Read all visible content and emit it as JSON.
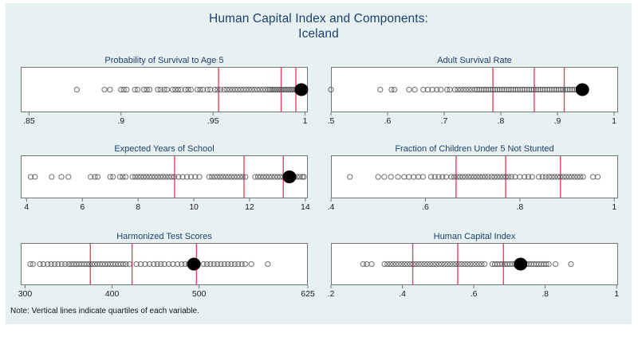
{
  "title": {
    "line1": "Human Capital Index and Components:",
    "line2": "Iceland"
  },
  "note": "Note: Vertical lines indicate quartiles of each variable.",
  "colors": {
    "canvas_bg": "#e7f1f2",
    "title_navy": "#1e3f6e",
    "quartile_line": "#ed3e68",
    "marker_outline": "#4a4a4a",
    "highlight_dot": "#000000",
    "plot_border": "#737373",
    "tick_text": "#1a1a1a",
    "plot_bg": "#ffffff"
  },
  "chart_data": [
    {
      "type": "scatter",
      "title": "Probability of Survival to Age 5",
      "xlabel": "",
      "xlim": [
        0.8455,
        1.0015
      ],
      "tick_values": [
        0.85,
        0.9,
        0.95,
        1
      ],
      "tick_labels": [
        ".85",
        ".9",
        ".95",
        "1"
      ],
      "quartiles": [
        0.953,
        0.987,
        0.995
      ],
      "highlight_country": "Iceland",
      "highlight": 0.998,
      "points": [
        0.876,
        0.891,
        0.894,
        0.9,
        0.9015,
        0.903,
        0.9075,
        0.909,
        0.9125,
        0.914,
        0.9155,
        0.92,
        0.9215,
        0.9235,
        0.925,
        0.928,
        0.9295,
        0.931,
        0.9325,
        0.935,
        0.9365,
        0.938,
        0.9415,
        0.943,
        0.9445,
        0.947,
        0.9485,
        0.951,
        0.9525,
        0.954,
        0.956,
        0.9575,
        0.959,
        0.9605,
        0.962,
        0.9635,
        0.965,
        0.9665,
        0.968,
        0.9695,
        0.971,
        0.9725,
        0.974,
        0.9755,
        0.977,
        0.9785,
        0.98,
        0.981,
        0.982,
        0.983,
        0.984,
        0.985,
        0.986,
        0.987,
        0.988,
        0.989,
        0.99,
        0.991,
        0.992,
        0.993,
        0.994,
        0.995,
        0.996,
        0.997,
        0.998,
        0.999,
        1.0
      ]
    },
    {
      "type": "scatter",
      "title": "Adult Survival Rate",
      "xlabel": "",
      "xlim": [
        0.5,
        1.007
      ],
      "tick_values": [
        0.5,
        0.6,
        0.7,
        0.8,
        0.9,
        1
      ],
      "tick_labels": [
        ".5",
        ".6",
        ".7",
        ".8",
        ".9",
        "1"
      ],
      "quartiles": [
        0.786,
        0.859,
        0.912
      ],
      "highlight_country": "Iceland",
      "highlight": 0.944,
      "points": [
        0.5,
        0.587,
        0.607,
        0.612,
        0.638,
        0.648,
        0.663,
        0.671,
        0.679,
        0.687,
        0.694,
        0.705,
        0.71,
        0.719,
        0.724,
        0.729,
        0.734,
        0.739,
        0.744,
        0.749,
        0.754,
        0.758,
        0.762,
        0.766,
        0.77,
        0.774,
        0.778,
        0.782,
        0.786,
        0.79,
        0.794,
        0.798,
        0.802,
        0.806,
        0.81,
        0.814,
        0.818,
        0.822,
        0.826,
        0.83,
        0.834,
        0.838,
        0.842,
        0.846,
        0.85,
        0.854,
        0.858,
        0.862,
        0.866,
        0.87,
        0.874,
        0.878,
        0.882,
        0.886,
        0.89,
        0.894,
        0.898,
        0.902,
        0.906,
        0.91,
        0.914,
        0.918,
        0.922,
        0.926,
        0.93,
        0.934,
        0.938,
        0.942,
        0.946,
        0.95
      ]
    },
    {
      "type": "scatter",
      "title": "Expected Years of School",
      "xlabel": "",
      "xlim": [
        3.79,
        14.09
      ],
      "tick_values": [
        4,
        6,
        8,
        10,
        12,
        14
      ],
      "tick_labels": [
        "4",
        "6",
        "8",
        "10",
        "12",
        "14"
      ],
      "quartiles": [
        9.31,
        11.8,
        13.21
      ],
      "highlight_country": "Iceland",
      "highlight": 13.43,
      "points": [
        4.15,
        4.3,
        4.9,
        5.25,
        5.5,
        6.3,
        6.45,
        6.55,
        7.0,
        7.1,
        7.35,
        7.45,
        7.55,
        7.8,
        7.9,
        8.0,
        8.1,
        8.2,
        8.3,
        8.4,
        8.5,
        8.6,
        8.7,
        8.8,
        8.9,
        9.0,
        9.1,
        9.2,
        9.3,
        9.45,
        9.6,
        9.75,
        9.9,
        10.05,
        10.2,
        10.55,
        10.65,
        10.75,
        10.85,
        10.95,
        11.05,
        11.15,
        11.25,
        11.35,
        11.45,
        11.55,
        11.65,
        11.75,
        11.85,
        12.2,
        12.3,
        12.4,
        12.5,
        12.6,
        12.7,
        12.8,
        12.9,
        13.0,
        13.1,
        13.2,
        13.3,
        13.4,
        13.5,
        13.6,
        13.7,
        13.8,
        13.9,
        13.95
      ]
    },
    {
      "type": "scatter",
      "title": "Fraction of Children Under 5 Not Stunted",
      "xlabel": "",
      "xlim": [
        0.4,
        1.008
      ],
      "tick_values": [
        0.4,
        0.6,
        0.8,
        1
      ],
      "tick_labels": [
        ".4",
        ".6",
        ".8",
        "1"
      ],
      "quartiles": [
        0.665,
        0.77,
        0.886
      ],
      "highlight_country": "Iceland",
      "highlight": null,
      "points": [
        0.44,
        0.5,
        0.513,
        0.527,
        0.542,
        0.555,
        0.565,
        0.575,
        0.585,
        0.595,
        0.612,
        0.62,
        0.628,
        0.636,
        0.644,
        0.655,
        0.661,
        0.667,
        0.673,
        0.679,
        0.685,
        0.691,
        0.697,
        0.703,
        0.709,
        0.715,
        0.721,
        0.727,
        0.733,
        0.74,
        0.746,
        0.752,
        0.758,
        0.764,
        0.77,
        0.776,
        0.782,
        0.79,
        0.8,
        0.81,
        0.818,
        0.826,
        0.84,
        0.848,
        0.855,
        0.862,
        0.868,
        0.874,
        0.88,
        0.886,
        0.892,
        0.898,
        0.904,
        0.91,
        0.916,
        0.922,
        0.928,
        0.934,
        0.955,
        0.965
      ]
    },
    {
      "type": "scatter",
      "title": "Harmonized Test Scores",
      "xlabel": "",
      "xlim": [
        295,
        625
      ],
      "tick_values": [
        300,
        400,
        500,
        625
      ],
      "tick_labels": [
        "300",
        "400",
        "500",
        "625"
      ],
      "quartiles": [
        375,
        423,
        497
      ],
      "highlight_country": "Iceland",
      "highlight": 494,
      "points": [
        306,
        309,
        317,
        321,
        326,
        330,
        334,
        338,
        342,
        346,
        350,
        353,
        356,
        359,
        362,
        365,
        368,
        371,
        374,
        377,
        380,
        383,
        386,
        389,
        392,
        395,
        398,
        401,
        404,
        407,
        410,
        413,
        416,
        420,
        428,
        433,
        438,
        443,
        448,
        452,
        456,
        460,
        465,
        470,
        475,
        480,
        484,
        488,
        492,
        505,
        509,
        513,
        517,
        521,
        525,
        529,
        533,
        537,
        541,
        545,
        549,
        553,
        560,
        579
      ]
    },
    {
      "type": "scatter",
      "title": "Human Capital Index",
      "xlabel": "",
      "xlim": [
        0.2,
        1.004
      ],
      "tick_values": [
        0.2,
        0.4,
        0.6,
        0.8,
        1
      ],
      "tick_labels": [
        ".2",
        ".4",
        ".6",
        ".8",
        "1"
      ],
      "quartiles": [
        0.429,
        0.555,
        0.683
      ],
      "highlight_country": "Iceland",
      "highlight": 0.731,
      "points": [
        0.29,
        0.3,
        0.314,
        0.35,
        0.358,
        0.366,
        0.374,
        0.382,
        0.39,
        0.398,
        0.406,
        0.414,
        0.422,
        0.43,
        0.438,
        0.446,
        0.454,
        0.462,
        0.47,
        0.478,
        0.486,
        0.494,
        0.502,
        0.51,
        0.518,
        0.526,
        0.534,
        0.542,
        0.55,
        0.558,
        0.566,
        0.574,
        0.582,
        0.59,
        0.598,
        0.606,
        0.614,
        0.622,
        0.63,
        0.652,
        0.659,
        0.666,
        0.673,
        0.68,
        0.687,
        0.694,
        0.701,
        0.708,
        0.715,
        0.722,
        0.729,
        0.74,
        0.747,
        0.754,
        0.761,
        0.768,
        0.775,
        0.782,
        0.789,
        0.796,
        0.803,
        0.81,
        0.829,
        0.872
      ]
    }
  ]
}
